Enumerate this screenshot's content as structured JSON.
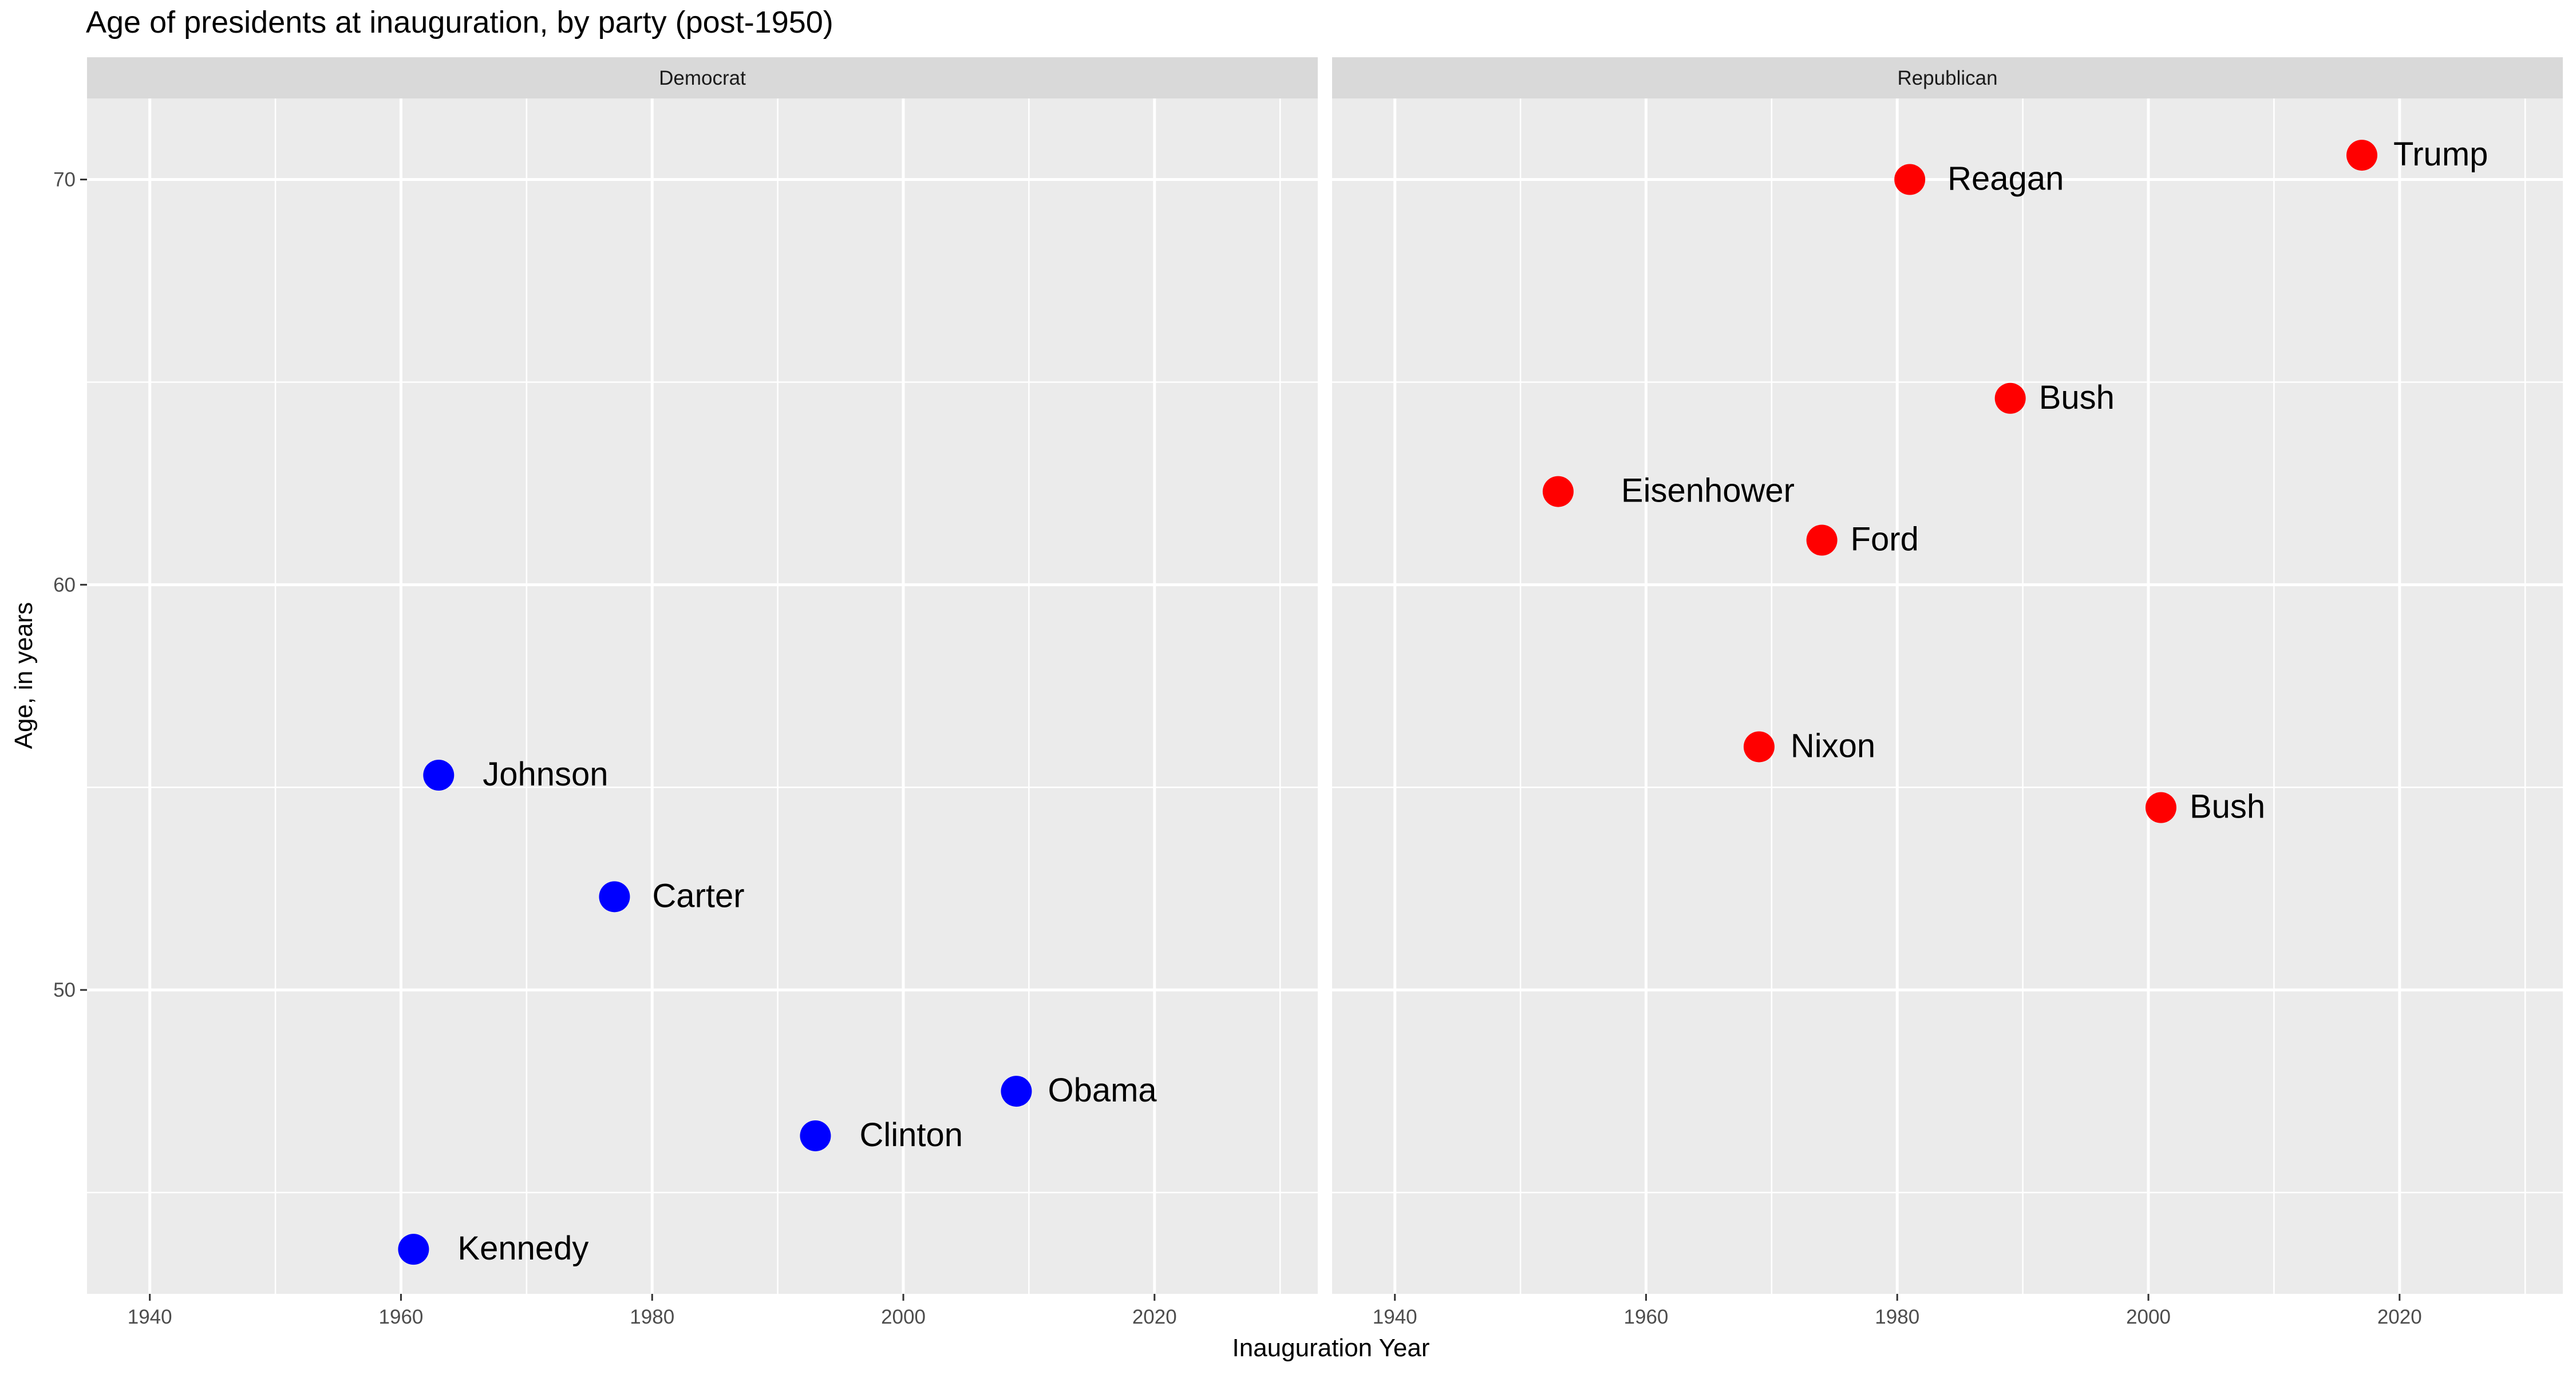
{
  "chart_data": {
    "type": "scatter",
    "title": "Age of presidents at inauguration, by party (post-1950)",
    "xlabel": "Inauguration Year",
    "ylabel": "Age, in years",
    "xlim": [
      1935,
      2033
    ],
    "ylim": [
      42.5,
      72
    ],
    "x_ticks": [
      1940,
      1960,
      1980,
      2000,
      2020
    ],
    "y_ticks": [
      50,
      60,
      70
    ],
    "grid": true,
    "legend": "none",
    "facets": [
      {
        "name": "Democrat",
        "color": "#0000ff",
        "points": [
          {
            "label": "Kennedy",
            "x": 1961,
            "y": 43.6
          },
          {
            "label": "Johnson",
            "x": 1963,
            "y": 55.3
          },
          {
            "label": "Carter",
            "x": 1977,
            "y": 52.3
          },
          {
            "label": "Clinton",
            "x": 1993,
            "y": 46.4
          },
          {
            "label": "Obama",
            "x": 2009,
            "y": 47.5
          }
        ]
      },
      {
        "name": "Republican",
        "color": "#ff0000",
        "points": [
          {
            "label": "Eisenhower",
            "x": 1953,
            "y": 62.3
          },
          {
            "label": "Nixon",
            "x": 1969,
            "y": 56.0
          },
          {
            "label": "Ford",
            "x": 1974,
            "y": 61.1
          },
          {
            "label": "Reagan",
            "x": 1981,
            "y": 70.0
          },
          {
            "label": "Bush",
            "x": 1989,
            "y": 64.6
          },
          {
            "label": "Bush",
            "x": 2001,
            "y": 54.5
          },
          {
            "label": "Trump",
            "x": 2017,
            "y": 70.6
          }
        ]
      }
    ]
  }
}
